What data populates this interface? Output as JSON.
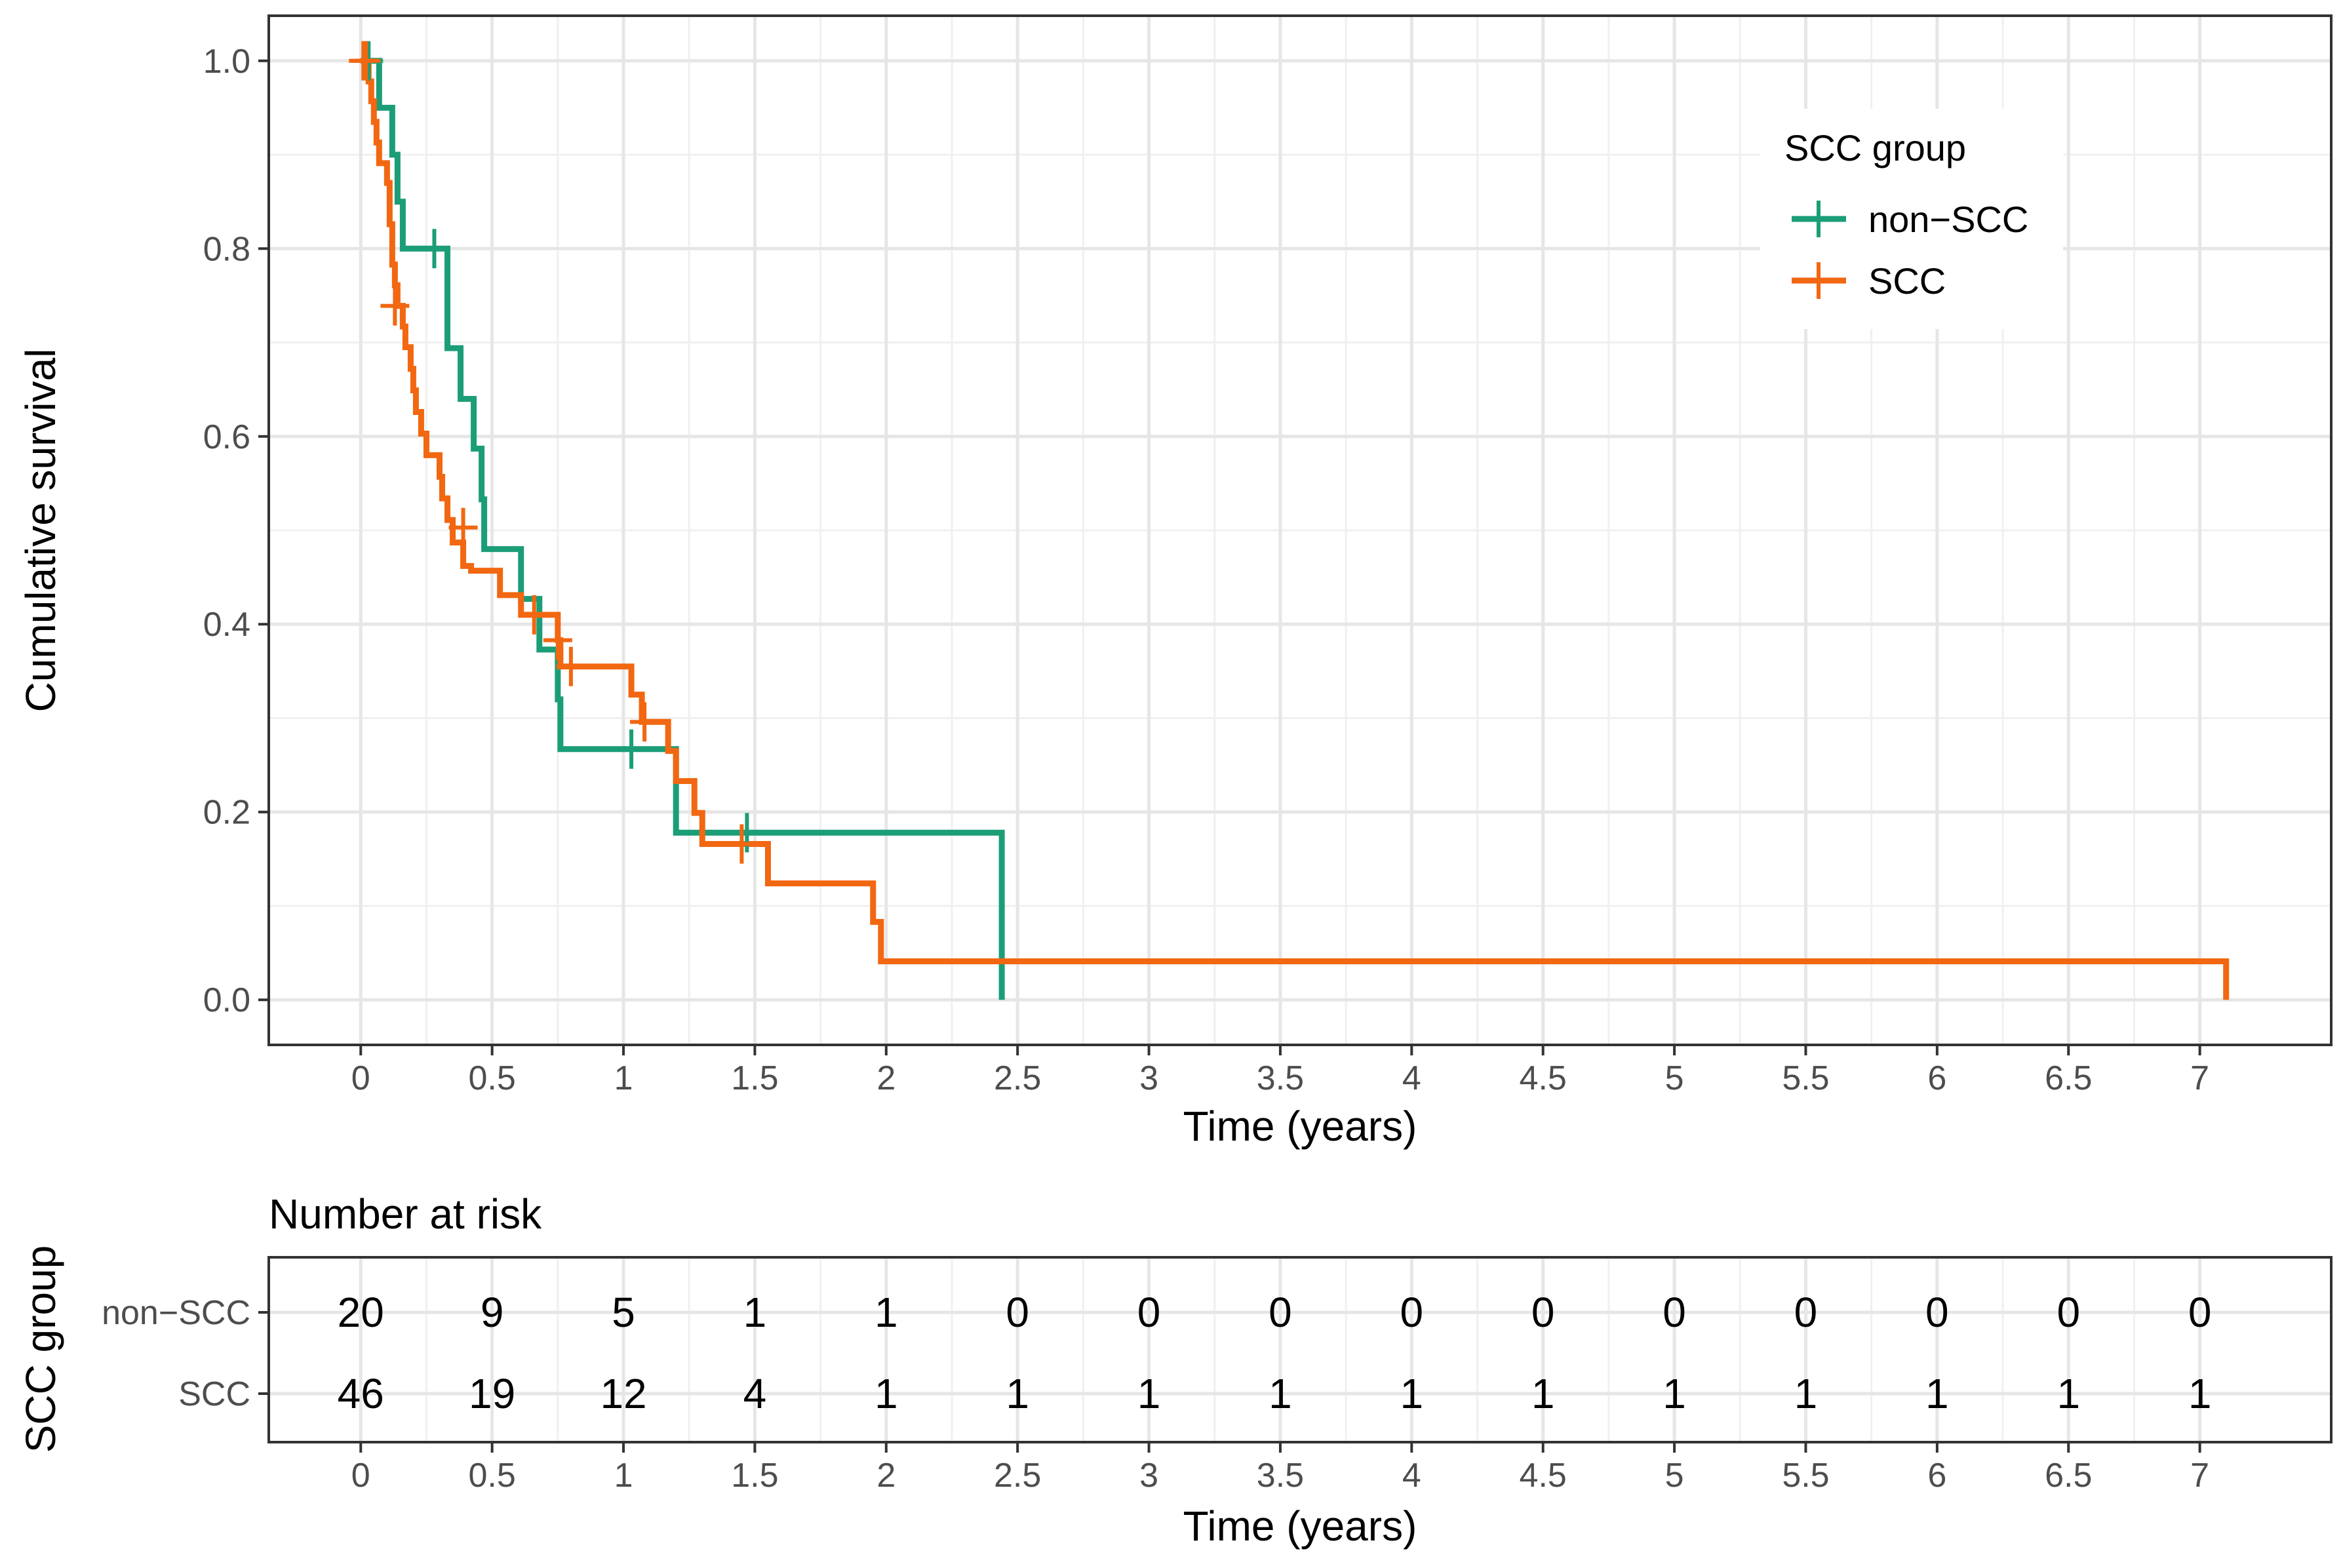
{
  "chart_data": [
    {
      "type": "line",
      "subtype": "kaplan-meier step",
      "xlabel": "Time (years)",
      "ylabel": "Cumulative survival",
      "xlim": [
        -0.35,
        7.5
      ],
      "ylim": [
        -0.048,
        1.048
      ],
      "x_ticks": [
        0,
        0.5,
        1,
        1.5,
        2,
        2.5,
        3,
        3.5,
        4,
        4.5,
        5,
        5.5,
        6,
        6.5,
        7
      ],
      "x_tick_labels": [
        "0",
        "0.5",
        "1",
        "1.5",
        "2",
        "2.5",
        "3",
        "3.5",
        "4",
        "4.5",
        "5",
        "5.5",
        "6",
        "6.5",
        "7"
      ],
      "y_ticks": [
        0,
        0.2,
        0.4,
        0.6,
        0.8,
        1.0
      ],
      "y_tick_labels": [
        "0.0",
        "0.2",
        "0.4",
        "0.6",
        "0.8",
        "1.0"
      ],
      "grid": true,
      "legend": {
        "title": "SCC group",
        "position": "top-right",
        "entries": [
          "non−SCC",
          "SCC"
        ]
      },
      "series": [
        {
          "name": "non−SCC",
          "color": "#1b9e77",
          "steps": [
            [
              0,
              1.0
            ],
            [
              0.07,
              0.95
            ],
            [
              0.12,
              0.9
            ],
            [
              0.14,
              0.85
            ],
            [
              0.16,
              0.8
            ],
            [
              0.33,
              0.694
            ],
            [
              0.38,
              0.64
            ],
            [
              0.43,
              0.587
            ],
            [
              0.46,
              0.533
            ],
            [
              0.47,
              0.48
            ],
            [
              0.61,
              0.427
            ],
            [
              0.68,
              0.373
            ],
            [
              0.75,
              0.32
            ],
            [
              0.76,
              0.267
            ],
            [
              1.2,
              0.178
            ],
            [
              2.44,
              0.0
            ]
          ],
          "end_x": 2.44,
          "censor_marks": [
            [
              0.03,
              1.0
            ],
            [
              0.28,
              0.8
            ],
            [
              1.03,
              0.267
            ],
            [
              1.47,
              0.178
            ]
          ]
        },
        {
          "name": "SCC",
          "color": "#f26711",
          "steps": [
            [
              0,
              1.0
            ],
            [
              0.03,
              0.978
            ],
            [
              0.04,
              0.957
            ],
            [
              0.05,
              0.935
            ],
            [
              0.06,
              0.913
            ],
            [
              0.07,
              0.891
            ],
            [
              0.1,
              0.87
            ],
            [
              0.11,
              0.848
            ],
            [
              0.11,
              0.826
            ],
            [
              0.12,
              0.804
            ],
            [
              0.12,
              0.783
            ],
            [
              0.13,
              0.761
            ],
            [
              0.14,
              0.739
            ],
            [
              0.16,
              0.717
            ],
            [
              0.17,
              0.695
            ],
            [
              0.19,
              0.672
            ],
            [
              0.2,
              0.649
            ],
            [
              0.21,
              0.626
            ],
            [
              0.23,
              0.603
            ],
            [
              0.25,
              0.58
            ],
            [
              0.3,
              0.557
            ],
            [
              0.31,
              0.534
            ],
            [
              0.33,
              0.511
            ],
            [
              0.35,
              0.487
            ],
            [
              0.39,
              0.462
            ],
            [
              0.42,
              0.457
            ],
            [
              0.53,
              0.431
            ],
            [
              0.61,
              0.41
            ],
            [
              0.75,
              0.383
            ],
            [
              0.76,
              0.355
            ],
            [
              1.03,
              0.325
            ],
            [
              1.07,
              0.296
            ],
            [
              1.17,
              0.265
            ],
            [
              1.2,
              0.233
            ],
            [
              1.27,
              0.199
            ],
            [
              1.3,
              0.166
            ],
            [
              1.55,
              0.124
            ],
            [
              1.95,
              0.083
            ],
            [
              1.98,
              0.041
            ],
            [
              7.1,
              0.0
            ]
          ],
          "end_x": 7.1,
          "censor_marks": [
            [
              0.01,
              1.0
            ],
            [
              0.02,
              1.0
            ],
            [
              0.13,
              0.739
            ],
            [
              0.39,
              0.503
            ],
            [
              0.66,
              0.41
            ],
            [
              0.75,
              0.383
            ],
            [
              0.8,
              0.355
            ],
            [
              1.08,
              0.296
            ],
            [
              1.45,
              0.166
            ]
          ]
        }
      ]
    },
    {
      "type": "table",
      "title": "Number at risk",
      "ylabel": "SCC group",
      "xlabel": "Time (years)",
      "x_ticks": [
        0,
        0.5,
        1,
        1.5,
        2,
        2.5,
        3,
        3.5,
        4,
        4.5,
        5,
        5.5,
        6,
        6.5,
        7
      ],
      "x_tick_labels": [
        "0",
        "0.5",
        "1",
        "1.5",
        "2",
        "2.5",
        "3",
        "3.5",
        "4",
        "4.5",
        "5",
        "5.5",
        "6",
        "6.5",
        "7"
      ],
      "rows": [
        {
          "name": "non−SCC",
          "values": [
            20,
            9,
            5,
            1,
            1,
            0,
            0,
            0,
            0,
            0,
            0,
            0,
            0,
            0,
            0
          ]
        },
        {
          "name": "SCC",
          "values": [
            46,
            19,
            12,
            4,
            1,
            1,
            1,
            1,
            1,
            1,
            1,
            1,
            1,
            1,
            1
          ]
        }
      ]
    }
  ]
}
